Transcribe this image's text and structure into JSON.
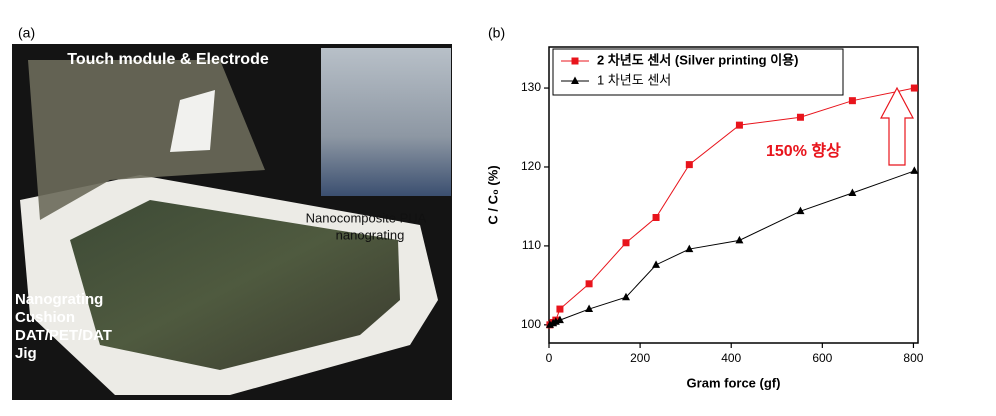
{
  "panel_a": {
    "label": "(a)",
    "top_label": "Touch module & Electrode",
    "inset_label": [
      "Nanocomposite PUA",
      "nanograting"
    ],
    "layers": [
      "Nanograting",
      "Cushion",
      "DAT/PET/DAT",
      "Jig"
    ]
  },
  "chart_data": {
    "type": "line",
    "panel_label": "(b)",
    "xlabel": "Gram force (gf)",
    "ylabel": "C / C₀ (%)",
    "x": [
      2,
      9,
      15,
      24,
      88,
      169,
      235,
      308,
      418,
      552,
      666,
      802
    ],
    "series": [
      {
        "name": "2 차년도 센서 (Silver printing 이용)",
        "color": "#e8141c",
        "marker": "square",
        "values": [
          100,
          100.3,
          100.6,
          102,
          105.2,
          110.4,
          113.6,
          120.3,
          125.3,
          126.3,
          128.4,
          130
        ]
      },
      {
        "name": "1 차년도 센서",
        "color": "#000000",
        "marker": "triangle",
        "values": [
          100,
          100.2,
          100.4,
          100.6,
          102,
          103.5,
          107.6,
          109.6,
          110.7,
          114.4,
          116.7,
          119.5
        ]
      }
    ],
    "annotation": "150% 향상",
    "xlim": [
      0,
      810
    ],
    "xticks": [
      0,
      200,
      400,
      600,
      800
    ],
    "ylim": [
      97.7,
      135.2
    ],
    "yticks": [
      100,
      110,
      120,
      130
    ],
    "legend": "upper left"
  }
}
